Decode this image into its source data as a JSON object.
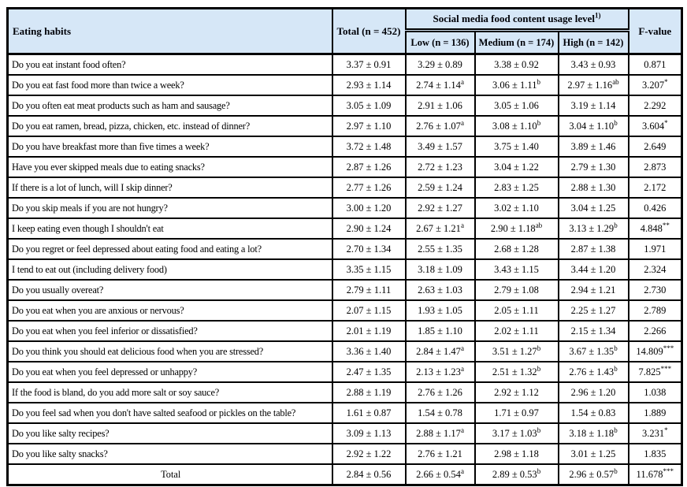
{
  "table": {
    "header_bg": "#d6e7f7",
    "border_color": "#000000",
    "header": {
      "eating_habits": "Eating habits",
      "total": "Total (n = 452)",
      "group": "Social media food content usage level",
      "group_sup": "1)",
      "sub": [
        "Low (n = 136)",
        "Medium (n = 174)",
        "High (n = 142)"
      ],
      "f_value": "F-value"
    },
    "cell_names": [
      "total-cell",
      "low-cell",
      "medium-cell",
      "high-cell",
      "f-value-cell"
    ],
    "rows": [
      {
        "q": "Do you eat instant food often?",
        "cells": [
          {
            "t": "3.37 ± 0.91"
          },
          {
            "t": "3.29 ± 0.89"
          },
          {
            "t": "3.38 ± 0.92"
          },
          {
            "t": "3.43 ± 0.93"
          },
          {
            "t": "0.871"
          }
        ]
      },
      {
        "q": "Do you eat fast food more than twice a week?",
        "cells": [
          {
            "t": "2.93 ± 1.14"
          },
          {
            "t": "2.74 ± 1.14",
            "s": "a"
          },
          {
            "t": "3.06 ± 1.11",
            "s": "b"
          },
          {
            "t": "2.97 ± 1.16",
            "s": "ab"
          },
          {
            "t": "3.207",
            "s": "*"
          }
        ]
      },
      {
        "q": "Do you often eat meat products such as ham and sausage?",
        "cells": [
          {
            "t": "3.05 ± 1.09"
          },
          {
            "t": "2.91 ± 1.06"
          },
          {
            "t": "3.05 ± 1.06"
          },
          {
            "t": "3.19 ± 1.14"
          },
          {
            "t": "2.292"
          }
        ]
      },
      {
        "q": "Do you eat ramen, bread, pizza, chicken, etc. instead of dinner?",
        "cells": [
          {
            "t": "2.97 ± 1.10"
          },
          {
            "t": "2.76 ± 1.07",
            "s": "a"
          },
          {
            "t": "3.08 ± 1.10",
            "s": "b"
          },
          {
            "t": "3.04 ± 1.10",
            "s": "b"
          },
          {
            "t": "3.604",
            "s": "*"
          }
        ]
      },
      {
        "q": "Do you have breakfast more than five times a week?",
        "cells": [
          {
            "t": "3.72 ± 1.48"
          },
          {
            "t": "3.49 ± 1.57"
          },
          {
            "t": "3.75 ± 1.40"
          },
          {
            "t": "3.89 ± 1.46"
          },
          {
            "t": "2.649"
          }
        ]
      },
      {
        "q": "Have you ever skipped meals due to eating snacks?",
        "cells": [
          {
            "t": "2.87 ± 1.26"
          },
          {
            "t": "2.72 ± 1.23"
          },
          {
            "t": "3.04 ± 1.22"
          },
          {
            "t": "2.79 ± 1.30"
          },
          {
            "t": "2.873"
          }
        ]
      },
      {
        "q": "If there is a lot of lunch, will I skip dinner?",
        "cells": [
          {
            "t": "2.77 ± 1.26"
          },
          {
            "t": "2.59 ± 1.24"
          },
          {
            "t": "2.83 ± 1.25"
          },
          {
            "t": "2.88 ± 1.30"
          },
          {
            "t": "2.172"
          }
        ]
      },
      {
        "q": "Do you skip meals if you are not hungry?",
        "cells": [
          {
            "t": "3.00 ± 1.20"
          },
          {
            "t": "2.92 ± 1.27"
          },
          {
            "t": "3.02 ± 1.10"
          },
          {
            "t": "3.04 ± 1.25"
          },
          {
            "t": "0.426"
          }
        ]
      },
      {
        "q": "I keep eating even though I shouldn't eat",
        "cells": [
          {
            "t": "2.90 ± 1.24"
          },
          {
            "t": "2.67 ± 1.21",
            "s": "a"
          },
          {
            "t": "2.90 ± 1.18",
            "s": "ab"
          },
          {
            "t": "3.13 ± 1.29",
            "s": "b"
          },
          {
            "t": "4.848",
            "s": "**"
          }
        ]
      },
      {
        "q": "Do you regret or feel depressed about eating food and eating a lot?",
        "cells": [
          {
            "t": "2.70 ± 1.34"
          },
          {
            "t": "2.55 ± 1.35"
          },
          {
            "t": "2.68 ± 1.28"
          },
          {
            "t": "2.87 ± 1.38"
          },
          {
            "t": "1.971"
          }
        ]
      },
      {
        "q": "I tend to eat out (including delivery food)",
        "cells": [
          {
            "t": "3.35 ± 1.15"
          },
          {
            "t": "3.18 ± 1.09"
          },
          {
            "t": "3.43 ± 1.15"
          },
          {
            "t": "3.44 ± 1.20"
          },
          {
            "t": "2.324"
          }
        ]
      },
      {
        "q": "Do you usually overeat?",
        "cells": [
          {
            "t": "2.79 ± 1.11"
          },
          {
            "t": "2.63 ± 1.03"
          },
          {
            "t": "2.79 ± 1.08"
          },
          {
            "t": "2.94 ± 1.21"
          },
          {
            "t": "2.730"
          }
        ]
      },
      {
        "q": "Do you eat when you are anxious or nervous?",
        "cells": [
          {
            "t": "2.07 ± 1.15"
          },
          {
            "t": "1.93 ± 1.05"
          },
          {
            "t": "2.05 ± 1.11"
          },
          {
            "t": "2.25 ± 1.27"
          },
          {
            "t": "2.789"
          }
        ]
      },
      {
        "q": "Do you eat when you feel inferior or dissatisfied?",
        "cells": [
          {
            "t": "2.01 ± 1.19"
          },
          {
            "t": "1.85 ± 1.10"
          },
          {
            "t": "2.02 ± 1.11"
          },
          {
            "t": "2.15 ± 1.34"
          },
          {
            "t": "2.266"
          }
        ]
      },
      {
        "q": "Do you think you should eat delicious food when you are stressed?",
        "cells": [
          {
            "t": "3.36 ± 1.40"
          },
          {
            "t": "2.84 ± 1.47",
            "s": "a"
          },
          {
            "t": "3.51 ± 1.27",
            "s": "b"
          },
          {
            "t": "3.67 ± 1.35",
            "s": "b"
          },
          {
            "t": "14.809",
            "s": "***"
          }
        ]
      },
      {
        "q": "Do you eat when you feel depressed or unhappy?",
        "cells": [
          {
            "t": "2.47 ± 1.35"
          },
          {
            "t": "2.13 ± 1.23",
            "s": "a"
          },
          {
            "t": "2.51 ± 1.32",
            "s": "b"
          },
          {
            "t": "2.76 ± 1.43",
            "s": "b"
          },
          {
            "t": "7.825",
            "s": "***"
          }
        ]
      },
      {
        "q": "If the food is bland, do you add more salt or soy sauce?",
        "cells": [
          {
            "t": "2.88 ± 1.19"
          },
          {
            "t": "2.76 ± 1.26"
          },
          {
            "t": "2.92 ± 1.12"
          },
          {
            "t": "2.96 ± 1.20"
          },
          {
            "t": "1.038"
          }
        ]
      },
      {
        "q": "Do you feel sad when you don't have salted seafood or pickles on the table?",
        "cells": [
          {
            "t": "1.61 ± 0.87"
          },
          {
            "t": "1.54 ± 0.78"
          },
          {
            "t": "1.71 ± 0.97"
          },
          {
            "t": "1.54 ± 0.83"
          },
          {
            "t": "1.889"
          }
        ]
      },
      {
        "q": "Do you like salty recipes?",
        "cells": [
          {
            "t": "3.09 ± 1.13"
          },
          {
            "t": "2.88 ± 1.17",
            "s": "a"
          },
          {
            "t": "3.17 ± 1.03",
            "s": "b"
          },
          {
            "t": "3.18 ± 1.18",
            "s": "b"
          },
          {
            "t": "3.231",
            "s": "*"
          }
        ]
      },
      {
        "q": "Do you like salty snacks?",
        "cells": [
          {
            "t": "2.92 ± 1.22"
          },
          {
            "t": "2.76 ± 1.21"
          },
          {
            "t": "2.98 ± 1.18"
          },
          {
            "t": "3.01 ± 1.25"
          },
          {
            "t": "1.835"
          }
        ]
      },
      {
        "q": "Total",
        "center": true,
        "cells": [
          {
            "t": "2.84 ± 0.56"
          },
          {
            "t": "2.66 ± 0.54",
            "s": "a"
          },
          {
            "t": "2.89 ± 0.53",
            "s": "b"
          },
          {
            "t": "2.96 ± 0.57",
            "s": "b"
          },
          {
            "t": "11.678",
            "s": "***"
          }
        ]
      }
    ]
  }
}
